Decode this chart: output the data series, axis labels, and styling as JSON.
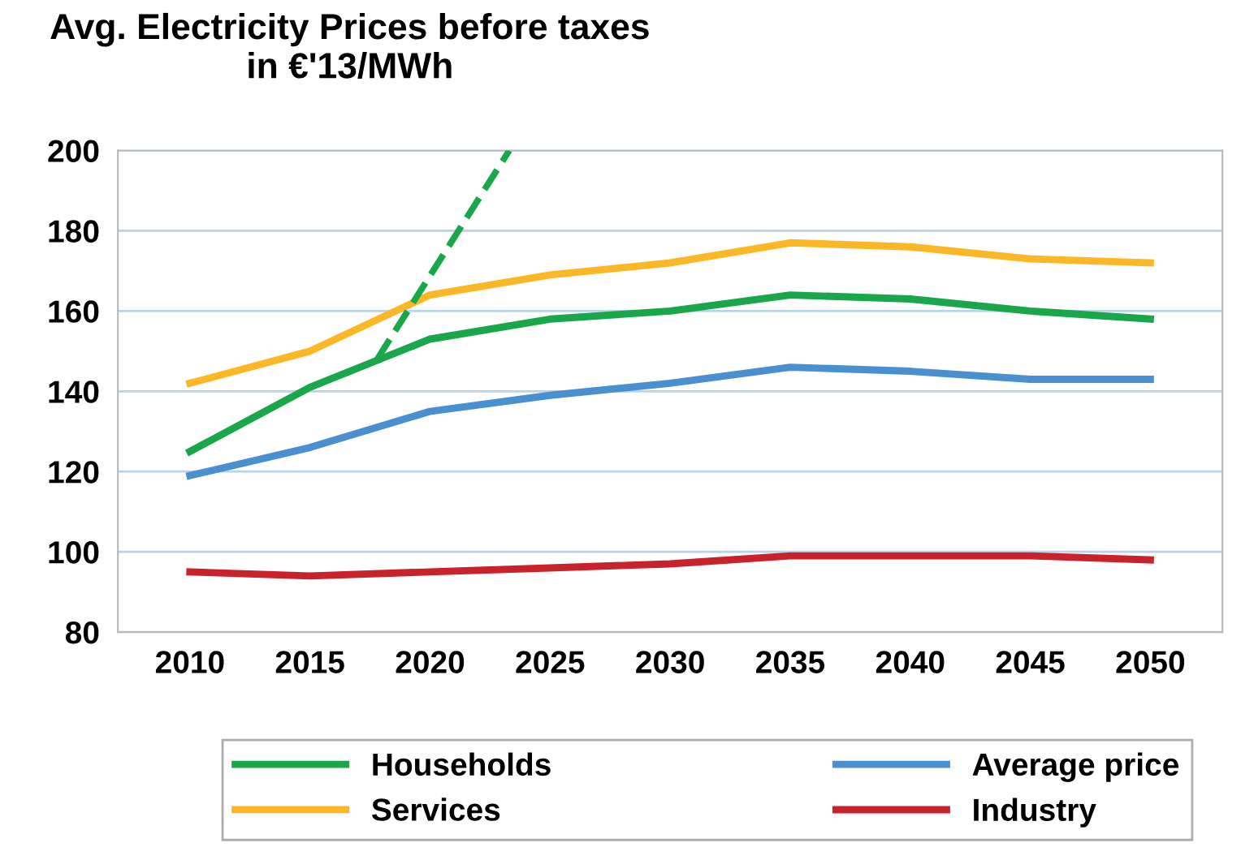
{
  "chart_data": {
    "type": "line",
    "title": "Avg. Electricity Prices before taxes\nin €'13/MWh",
    "x": [
      2010,
      2015,
      2020,
      2025,
      2030,
      2035,
      2040,
      2045,
      2050
    ],
    "series": [
      {
        "name": "Households",
        "color": "#1aa64a",
        "values": [
          125,
          141,
          153,
          158,
          160,
          164,
          163,
          160,
          158
        ]
      },
      {
        "name": "Services",
        "color": "#fbb726",
        "values": [
          142,
          150,
          164,
          169,
          172,
          177,
          176,
          173,
          172
        ]
      },
      {
        "name": "Average price",
        "color": "#4a90d0",
        "values": [
          119,
          126,
          135,
          139,
          142,
          146,
          145,
          143,
          143
        ]
      },
      {
        "name": "Industry",
        "color": "#c8232c",
        "values": [
          95,
          94,
          95,
          96,
          97,
          99,
          99,
          99,
          98
        ]
      },
      {
        "type": "line",
        "color": "#1aa64a",
        "line_style": "dashed",
        "x": [
          2017.8,
          2023.3
        ],
        "values": [
          148,
          200
        ]
      }
    ],
    "xlim": [
      2007,
      2053
    ],
    "xticks": [
      2010,
      2015,
      2020,
      2025,
      2030,
      2035,
      2040,
      2045,
      2050
    ],
    "ylim": [
      80,
      200
    ],
    "yticks": [
      80,
      100,
      120,
      140,
      160,
      180,
      200
    ],
    "grid": "y",
    "legend": "bottom",
    "marker": "none",
    "line_style": "solid"
  }
}
